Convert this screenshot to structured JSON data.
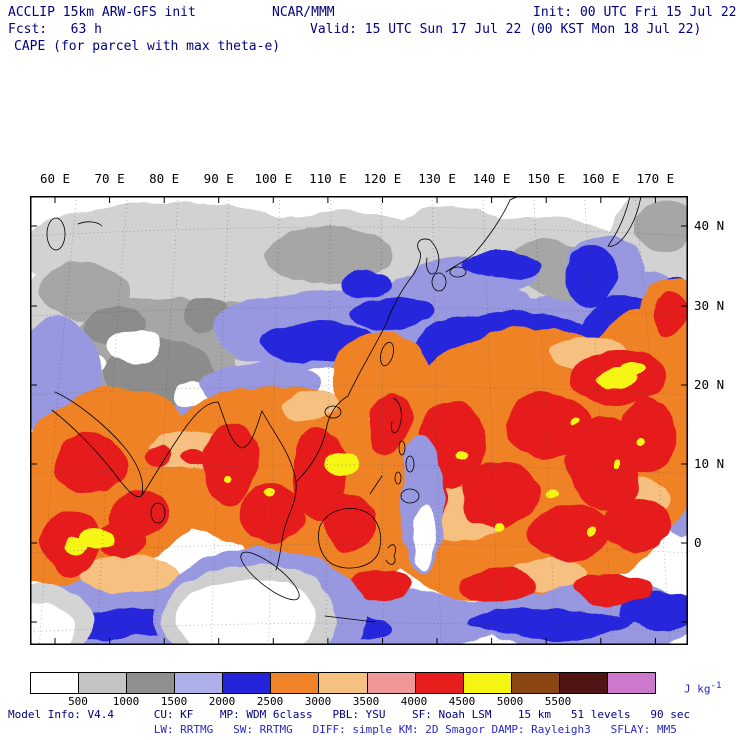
{
  "header": {
    "model": "ACCLIP 15km ARW-GFS init",
    "org": "NCAR/MMM",
    "init": "Init: 00 UTC Fri 15 Jul 22",
    "fcst": "Fcst:   63 h",
    "valid": "Valid: 15 UTC Sun 17 Jul 22 (00 KST Mon 18 Jul 22)",
    "field_title": "CAPE (for parcel with max theta-e)"
  },
  "axes": {
    "lon_labels": [
      "60 E",
      "70 E",
      "80 E",
      "90 E",
      "100 E",
      "110 E",
      "120 E",
      "130 E",
      "140 E",
      "150 E",
      "160 E",
      "170 E"
    ],
    "lat_labels": [
      "40 N",
      "30 N",
      "20 N",
      "10 N",
      "0"
    ]
  },
  "colorbar": {
    "tick_labels": [
      "500",
      "1000",
      "1500",
      "2000",
      "2500",
      "3000",
      "3500",
      "4000",
      "4500",
      "5000",
      "5500"
    ],
    "colors": [
      "#ffffff",
      "#c4c4c4",
      "#8f8f8f",
      "#aeaee8",
      "#2424dd",
      "#f08228",
      "#f5c080",
      "#f09898",
      "#e61e1e",
      "#f5f514",
      "#8c4614",
      "#501414",
      "#cd78cd"
    ],
    "units": "J kg",
    "units_exp": "-1"
  },
  "footer": {
    "line1": "Model Info: V4.4      CU: KF    MP: WDM 6class   PBL: YSU    SF: Noah LSM    15 km   51 levels   90 sec",
    "line2": "                      LW: RRTMG   SW: RRTMG   DIFF: simple KM: 2D Smagor DAMP: Rayleigh3   SFLAY: MM5"
  },
  "chart_data": {
    "type": "heatmap",
    "title": "CAPE (for parcel with max theta-e)",
    "model": "ACCLIP 15km ARW-GFS init",
    "organization": "NCAR/MMM",
    "init_time": "00 UTC Fri 15 Jul 22",
    "forecast_hour": 63,
    "valid_time": "15 UTC Sun 17 Jul 22 (00 KST Mon 18 Jul 22)",
    "units": "J kg-1",
    "x_axis": {
      "label": "longitude",
      "ticks": [
        "60 E",
        "70 E",
        "80 E",
        "90 E",
        "100 E",
        "110 E",
        "120 E",
        "130 E",
        "140 E",
        "150 E",
        "160 E",
        "170 E"
      ]
    },
    "y_axis": {
      "label": "latitude",
      "ticks": [
        "40 N",
        "30 N",
        "20 N",
        "10 N",
        "0"
      ]
    },
    "colorbar_levels": [
      500,
      1000,
      1500,
      2000,
      2500,
      3000,
      3500,
      4000,
      4500,
      5000,
      5500
    ],
    "colorbar_colors": [
      "#ffffff",
      "#c4c4c4",
      "#8f8f8f",
      "#aeaee8",
      "#2424dd",
      "#f08228",
      "#f5c080",
      "#f09898",
      "#e61e1e",
      "#f5f514",
      "#8c4614",
      "#501414",
      "#cd78cd"
    ],
    "grid": "dotted lat/lon graticule, Lambert-style projection, coastlines drawn in black",
    "legend_position": "bottom colorbar",
    "regions_depicted": [
      {
        "area": "Tibetan Plateau, NW China, Mongolia, far NE Asia (north of ~30N)",
        "cape_J_per_kg": "0-1500 (white to gray shading)"
      },
      {
        "area": "Transition band across central/eastern China and mid-ocean fringes",
        "cape_J_per_kg": "1500-2500 (periwinkle and blue shading)"
      },
      {
        "area": "India, Arabian Sea, Bay of Bengal, Indochina, South China Sea",
        "cape_J_per_kg": "2500-4500 (orange with embedded red patches)"
      },
      {
        "area": "Philippine Sea / tropical western Pacific (largest contiguous mass)",
        "cape_J_per_kg": "2500-5000 (orange-red with yellow maxima)"
      },
      {
        "area": "Isolated yellow maxima (e.g. ~115E 12N, ~158E 22N, ~65E 2N)",
        "cape_J_per_kg": ">4500"
      },
      {
        "area": "Equatorial Indian Ocean south of Sri Lanka; far NW corner",
        "cape_J_per_kg": "near 0 (white)"
      }
    ]
  }
}
